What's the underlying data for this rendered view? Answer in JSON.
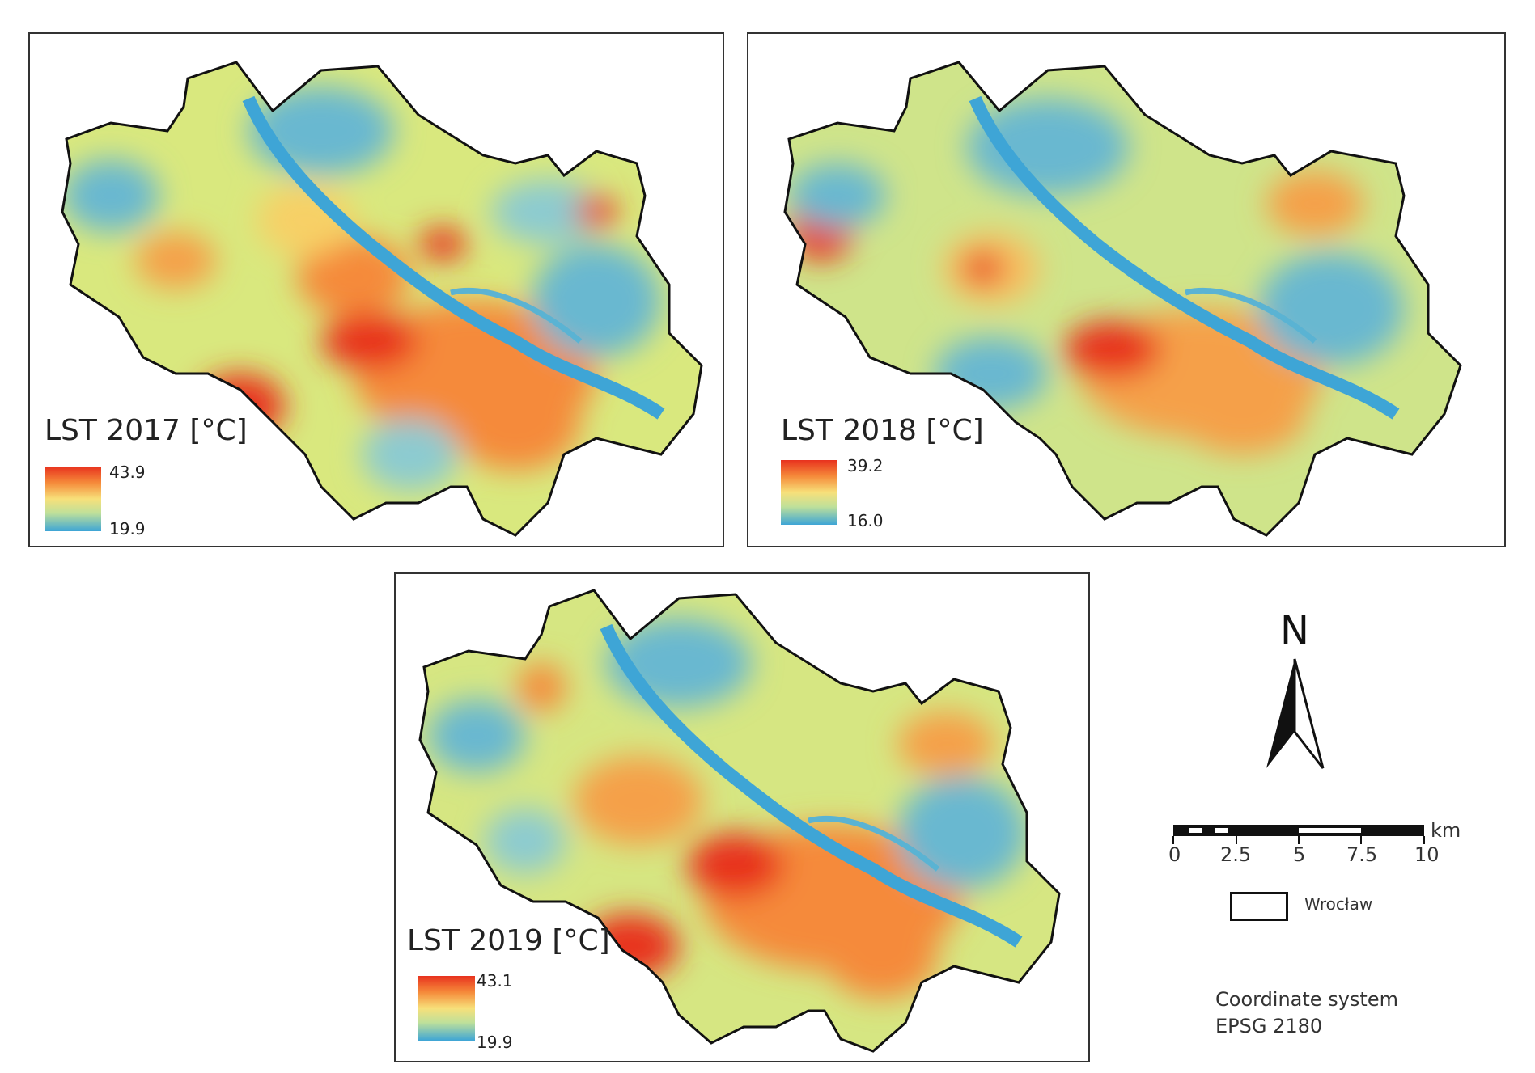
{
  "maps": [
    {
      "title": "LST 2017 [°C]",
      "max_label": "43.9",
      "min_label": "19.9"
    },
    {
      "title": "LST 2018 [°C]",
      "max_label": "39.2",
      "min_label": "16.0"
    },
    {
      "title": "LST 2019 [°C]",
      "max_label": "43.1",
      "min_label": "19.9"
    }
  ],
  "north_arrow": {
    "letter": "N"
  },
  "scale_bar": {
    "unit": "km",
    "ticks": [
      "0",
      "2.5",
      "5",
      "7.5",
      "10"
    ]
  },
  "legend": {
    "item_label": "Wrocław"
  },
  "coordinate_system": {
    "line1": "Coordinate system",
    "line2": "EPSG 2180"
  },
  "colors": {
    "hot": "#e8321e",
    "warm": "#f58a3a",
    "mid": "#f7e07a",
    "cool": "#bfe09a",
    "cold": "#3ea5d6",
    "outline": "#111111"
  }
}
